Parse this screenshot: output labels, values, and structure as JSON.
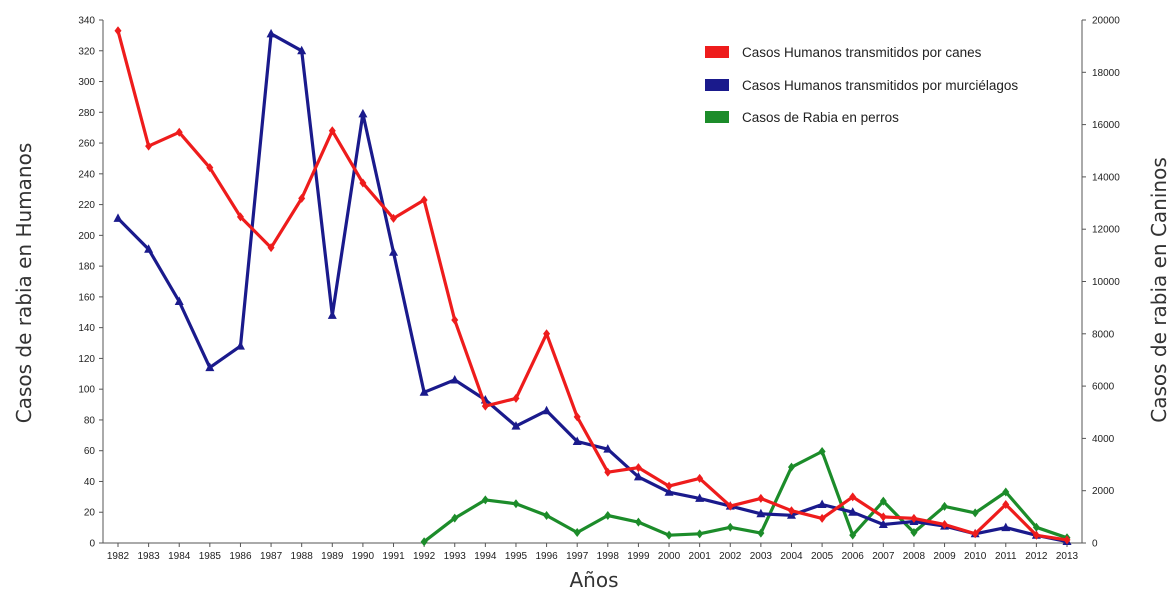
{
  "chart_data": {
    "type": "line",
    "x": [
      "1982",
      "1983",
      "1984",
      "1985",
      "1986",
      "1987",
      "1988",
      "1989",
      "1990",
      "1991",
      "1992",
      "1993",
      "1994",
      "1995",
      "1996",
      "1997",
      "1998",
      "1999",
      "2000",
      "2001",
      "2002",
      "2003",
      "2004",
      "2005",
      "2006",
      "2007",
      "2008",
      "2009",
      "2010",
      "2011",
      "2012",
      "2013"
    ],
    "xlabel": "Años",
    "ylabel_left": "Casos de rabia en Humanos",
    "ylabel_right": "Casos de rabia en Caninos",
    "ylim_left": [
      0,
      340
    ],
    "ylim_right": [
      0,
      20000
    ],
    "yticks_left": [
      0,
      20,
      40,
      60,
      80,
      100,
      120,
      140,
      160,
      180,
      200,
      220,
      240,
      260,
      280,
      300,
      320,
      340
    ],
    "yticks_right": [
      0,
      2000,
      4000,
      6000,
      8000,
      10000,
      12000,
      14000,
      16000,
      18000,
      20000
    ],
    "legend_position": "top-right",
    "grid": false,
    "series": [
      {
        "name": "Casos Humanos transmitidos por canes",
        "color": "#ee1c1c",
        "axis": "left",
        "marker": "diamond",
        "values": [
          333,
          258,
          267,
          244,
          212,
          192,
          224,
          268,
          234,
          211,
          223,
          145,
          89,
          94,
          136,
          82,
          46,
          49,
          37,
          42,
          24,
          29,
          21,
          16,
          30,
          17,
          16,
          12,
          6,
          25,
          5,
          2
        ]
      },
      {
        "name": "Casos Humanos transmitidos por murciélagos",
        "color": "#1a1a8c",
        "axis": "left",
        "marker": "triangle",
        "values": [
          211,
          191,
          157,
          114,
          128,
          331,
          320,
          148,
          279,
          189,
          98,
          106,
          93,
          76,
          86,
          66,
          61,
          43,
          33,
          29,
          24,
          19,
          18,
          25,
          20,
          12,
          14,
          11,
          6,
          10,
          5,
          1
        ]
      },
      {
        "name": "Casos de Rabia en perros",
        "color": "#1c8c2a",
        "axis": "right",
        "marker": "diamond",
        "values": [
          null,
          null,
          null,
          null,
          null,
          null,
          null,
          null,
          null,
          null,
          50,
          950,
          1650,
          1500,
          1050,
          400,
          1050,
          800,
          300,
          350,
          600,
          380,
          2900,
          3500,
          300,
          1600,
          400,
          1400,
          1150,
          1950,
          600,
          200
        ]
      }
    ]
  }
}
